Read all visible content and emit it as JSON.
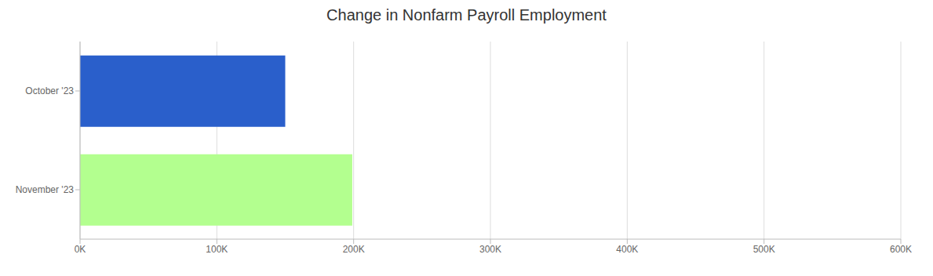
{
  "chart_data": {
    "type": "bar",
    "title": "Change in Nonfarm Payroll Employment",
    "orientation": "horizontal",
    "categories": [
      "October '23",
      "November '23"
    ],
    "values": [
      150000,
      199000
    ],
    "colors": [
      "#2a5fcb",
      "#b3ff8f"
    ],
    "xlim": [
      0,
      600000
    ],
    "xticks": [
      {
        "value": 0,
        "label": "0K"
      },
      {
        "value": 100000,
        "label": "100K"
      },
      {
        "value": 200000,
        "label": "200K"
      },
      {
        "value": 300000,
        "label": "300K"
      },
      {
        "value": 400000,
        "label": "400K"
      },
      {
        "value": 500000,
        "label": "500K"
      },
      {
        "value": 600000,
        "label": "600K"
      }
    ],
    "grid": true
  }
}
